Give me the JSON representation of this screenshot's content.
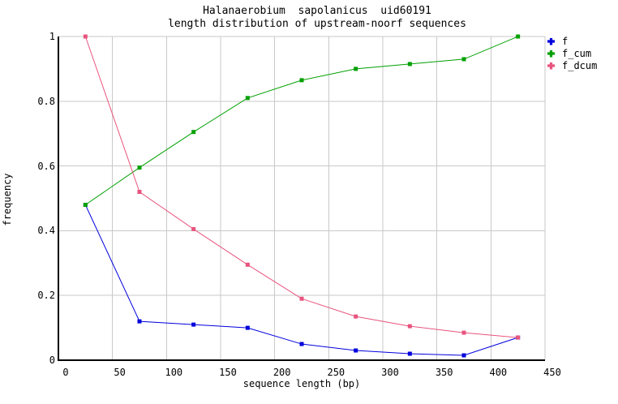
{
  "chart_data": {
    "type": "line",
    "title": "Halanaerobium  sapolanicus  uid60191",
    "subtitle": "length distribution of upstream-noorf sequences",
    "xlabel": "sequence length (bp)",
    "ylabel": "frequency",
    "xlim": [
      0,
      450
    ],
    "ylim": [
      0,
      1
    ],
    "grid": true,
    "legend_position": "outside-top-right",
    "x_ticks": [
      0,
      50,
      100,
      150,
      200,
      250,
      300,
      350,
      400,
      450
    ],
    "x_tick_labels": [
      "0",
      "50",
      "100",
      "150",
      "200",
      "250",
      "300",
      "350",
      "400",
      "450"
    ],
    "y_ticks": [
      0,
      0.2,
      0.4,
      0.6,
      0.8,
      1
    ],
    "y_tick_labels": [
      "0",
      "0.2",
      "0.4",
      "0.6",
      "0.8",
      "1"
    ],
    "x": [
      25,
      75,
      125,
      175,
      225,
      275,
      325,
      375,
      425
    ],
    "series": [
      {
        "name": "f",
        "color": "#0000dc",
        "values": [
          0.48,
          0.12,
          0.11,
          0.1,
          0.05,
          0.03,
          0.02,
          0.015,
          0.07
        ]
      },
      {
        "name": "f_cum",
        "color": "#00a000",
        "values": [
          0.48,
          0.595,
          0.705,
          0.81,
          0.865,
          0.9,
          0.915,
          0.93,
          1.0
        ]
      },
      {
        "name": "f_dcum",
        "color": "#e8547e",
        "values": [
          1.0,
          0.52,
          0.405,
          0.295,
          0.19,
          0.135,
          0.105,
          0.085,
          0.07
        ]
      }
    ]
  },
  "colors": {
    "background": "#ffffff",
    "grid": "#c9c9c9",
    "border": "#b4b4b4",
    "axis": "#000000",
    "text": "#000000"
  }
}
